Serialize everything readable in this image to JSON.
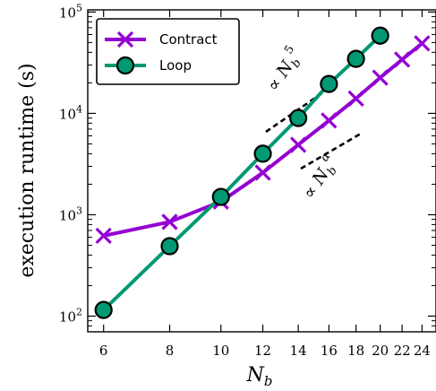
{
  "chart_data": {
    "type": "line",
    "xscale": "log",
    "yscale": "log",
    "xlabel_main": "N",
    "xlabel_sub": "b",
    "ylabel": "execution runtime (s)",
    "xlim": [
      5.6,
      25.5
    ],
    "ylim": [
      70,
      105000
    ],
    "xticks": [
      6,
      8,
      10,
      12,
      14,
      16,
      18,
      20,
      22,
      24
    ],
    "xtick_labels": [
      "6",
      "8",
      "10",
      "12",
      "14",
      "16",
      "18",
      "20",
      "22",
      "24"
    ],
    "yticks": [
      {
        "base": "10",
        "exp": "2",
        "value": 100
      },
      {
        "base": "10",
        "exp": "3",
        "value": 1000
      },
      {
        "base": "10",
        "exp": "4",
        "value": 10000
      },
      {
        "base": "10",
        "exp": "5",
        "value": 100000
      }
    ],
    "legend_position": "top-left",
    "series": [
      {
        "name": "Contract",
        "color": "#9400D3",
        "marker": "x",
        "x": [
          6,
          8,
          10,
          12,
          14,
          16,
          18,
          20,
          22,
          24
        ],
        "y": [
          620,
          850,
          1350,
          2600,
          4900,
          8500,
          14000,
          22500,
          34000,
          49000
        ]
      },
      {
        "name": "Loop",
        "color": "#009973",
        "marker": "circle",
        "x": [
          6,
          8,
          10,
          12,
          14,
          16,
          18,
          20
        ],
        "y": [
          115,
          490,
          1500,
          4000,
          9000,
          19500,
          34500,
          58500
        ]
      }
    ],
    "annotations": [
      {
        "prefix": "∝ ",
        "base": "N",
        "sub": "b",
        "sup": "5"
      },
      {
        "prefix": "∝ ",
        "base": "N",
        "sub": "b",
        "sup": "α"
      }
    ]
  }
}
